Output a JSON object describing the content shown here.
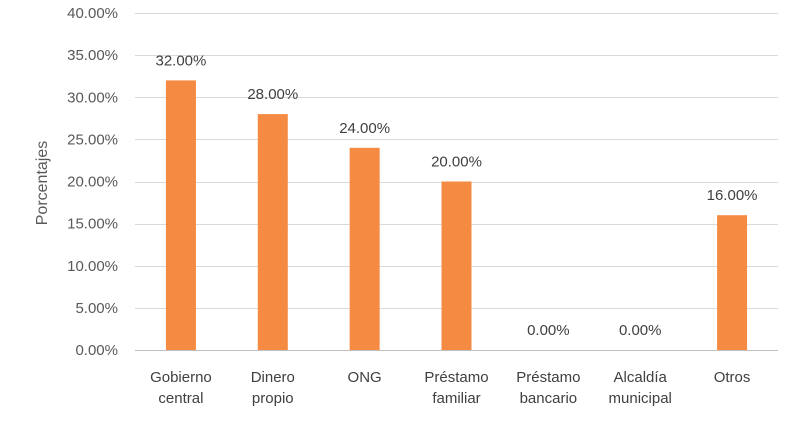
{
  "chart_data": {
    "type": "bar",
    "title": "",
    "xlabel": "",
    "ylabel": "Porcentajes",
    "ylim": [
      0,
      40
    ],
    "y_ticks": [
      "0.00%",
      "5.00%",
      "10.00%",
      "15.00%",
      "20.00%",
      "25.00%",
      "30.00%",
      "35.00%",
      "40.00%"
    ],
    "y_tick_values": [
      0,
      5,
      10,
      15,
      20,
      25,
      30,
      35,
      40
    ],
    "grid": true,
    "legend": "none",
    "categories": [
      [
        "Gobierno",
        "central"
      ],
      [
        "Dinero",
        "propio"
      ],
      [
        "ONG"
      ],
      [
        "Préstamo",
        "familiar"
      ],
      [
        "Préstamo",
        "bancario"
      ],
      [
        "Alcaldía",
        "municipal"
      ],
      [
        "Otros"
      ]
    ],
    "values": [
      32,
      28,
      24,
      20,
      0,
      0,
      16
    ],
    "data_labels": [
      "32.00%",
      "28.00%",
      "24.00%",
      "20.00%",
      "0.00%",
      "0.00%",
      "16.00%"
    ],
    "colors": {
      "bar": "#F58B43",
      "grid": "#D9D9D9",
      "axis": "#BFBFBF"
    }
  }
}
